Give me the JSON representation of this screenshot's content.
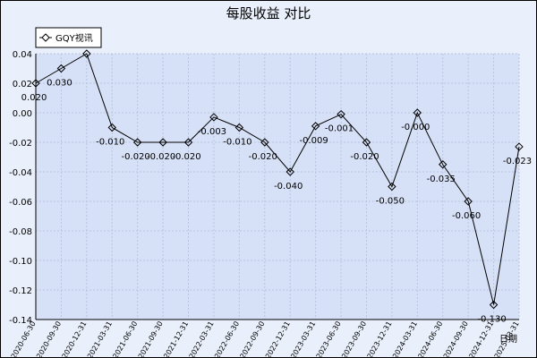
{
  "chart_data": {
    "type": "line",
    "title": "每股收益 对比",
    "xlabel": "日期",
    "ylabel": "",
    "ylim": [
      -0.14,
      0.04
    ],
    "yticks": [
      "0.04",
      "0.02",
      "0.00",
      "-0.02",
      "-0.04",
      "-0.06",
      "-0.08",
      "-0.10",
      "-0.12",
      "-0.14"
    ],
    "legend": {
      "position": "top-left"
    },
    "grid": true,
    "colors": {
      "plot_bg": "#d6e0f6",
      "frame_bg": "#eaf0fb",
      "grid": "#b8c4e0",
      "line": "#000000"
    },
    "categories": [
      "2020-06-30",
      "2020-09-30",
      "2020-12-31",
      "2021-03-31",
      "2021-06-30",
      "2021-09-30",
      "2021-12-31",
      "2022-03-31",
      "2022-06-30",
      "2022-09-30",
      "2022-12-31",
      "2023-03-31",
      "2023-06-30",
      "2023-09-30",
      "2023-12-31",
      "2024-03-31",
      "2024-06-30",
      "2024-09-30",
      "2024-12-31",
      "2025-03-31"
    ],
    "series": [
      {
        "name": "GQY视讯",
        "values": [
          0.02,
          0.03,
          0.04,
          -0.01,
          -0.02,
          -0.02,
          -0.02,
          -0.003,
          -0.01,
          -0.02,
          -0.04,
          -0.009,
          -0.001,
          -0.02,
          -0.05,
          0.0,
          -0.035,
          -0.06,
          -0.13,
          -0.023
        ],
        "labels": [
          "0.020",
          "0.030",
          "",
          "-0.010",
          "-0.020",
          "-0.020",
          "-0.020",
          "-0.003",
          "-0.010",
          "-0.020",
          "-0.040",
          "-0.009",
          "-0.001",
          "-0.020",
          "-0.050",
          "-0.000",
          "-0.035",
          "-0.060",
          "-0.130",
          "-0.023"
        ]
      }
    ]
  }
}
